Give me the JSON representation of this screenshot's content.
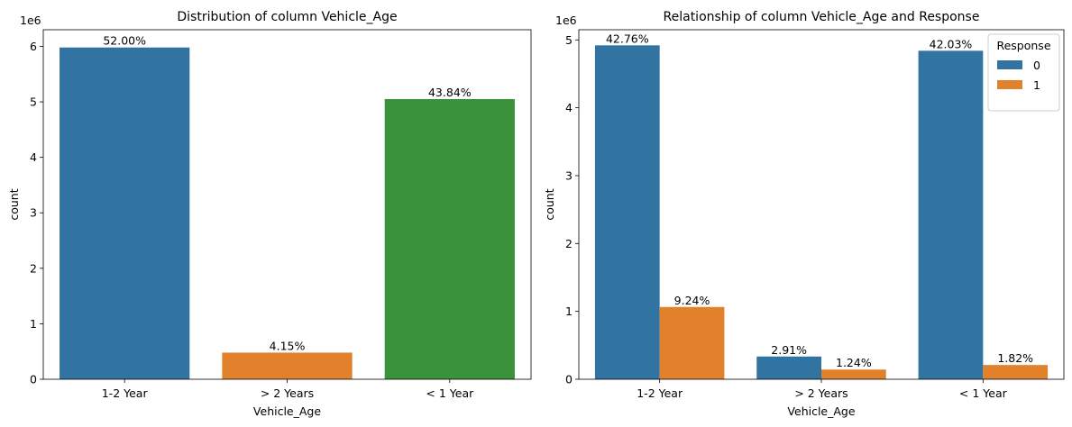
{
  "chart_data": [
    {
      "type": "bar",
      "title": "Distribution of column Vehicle_Age",
      "xlabel": "Vehicle_Age",
      "ylabel": "count",
      "y_multiplier_label": "1e6",
      "categories": [
        "1-2 Year",
        "> 2 Years",
        "< 1 Year"
      ],
      "values": [
        5.98,
        0.48,
        5.05
      ],
      "bar_colors": [
        "#3274a1",
        "#e1812c",
        "#3a923a"
      ],
      "bar_labels": [
        "52.00%",
        "4.15%",
        "43.84%"
      ],
      "ylim": [
        0,
        6.3
      ],
      "yticks": [
        0,
        1,
        2,
        3,
        4,
        5,
        6
      ],
      "ytick_labels": [
        "0",
        "1",
        "2",
        "3",
        "4",
        "5",
        "6"
      ],
      "grid": false,
      "legend": null
    },
    {
      "type": "bar",
      "title": "Relationship of column Vehicle_Age and Response",
      "xlabel": "Vehicle_Age",
      "ylabel": "count",
      "y_multiplier_label": "1e6",
      "categories": [
        "1-2 Year",
        "> 2 Years",
        "< 1 Year"
      ],
      "series": [
        {
          "name": "0",
          "color": "#3274a1",
          "values": [
            4.92,
            0.335,
            4.84
          ],
          "labels": [
            "42.76%",
            "2.91%",
            "42.03%"
          ]
        },
        {
          "name": "1",
          "color": "#e1812c",
          "values": [
            1.065,
            0.143,
            0.21
          ],
          "labels": [
            "9.24%",
            "1.24%",
            "1.82%"
          ]
        }
      ],
      "ylim": [
        0,
        5.15
      ],
      "yticks": [
        0,
        1,
        2,
        3,
        4,
        5
      ],
      "ytick_labels": [
        "0",
        "1",
        "2",
        "3",
        "4",
        "5"
      ],
      "grid": false,
      "legend": {
        "title": "Response",
        "placement": "top-right"
      }
    }
  ]
}
